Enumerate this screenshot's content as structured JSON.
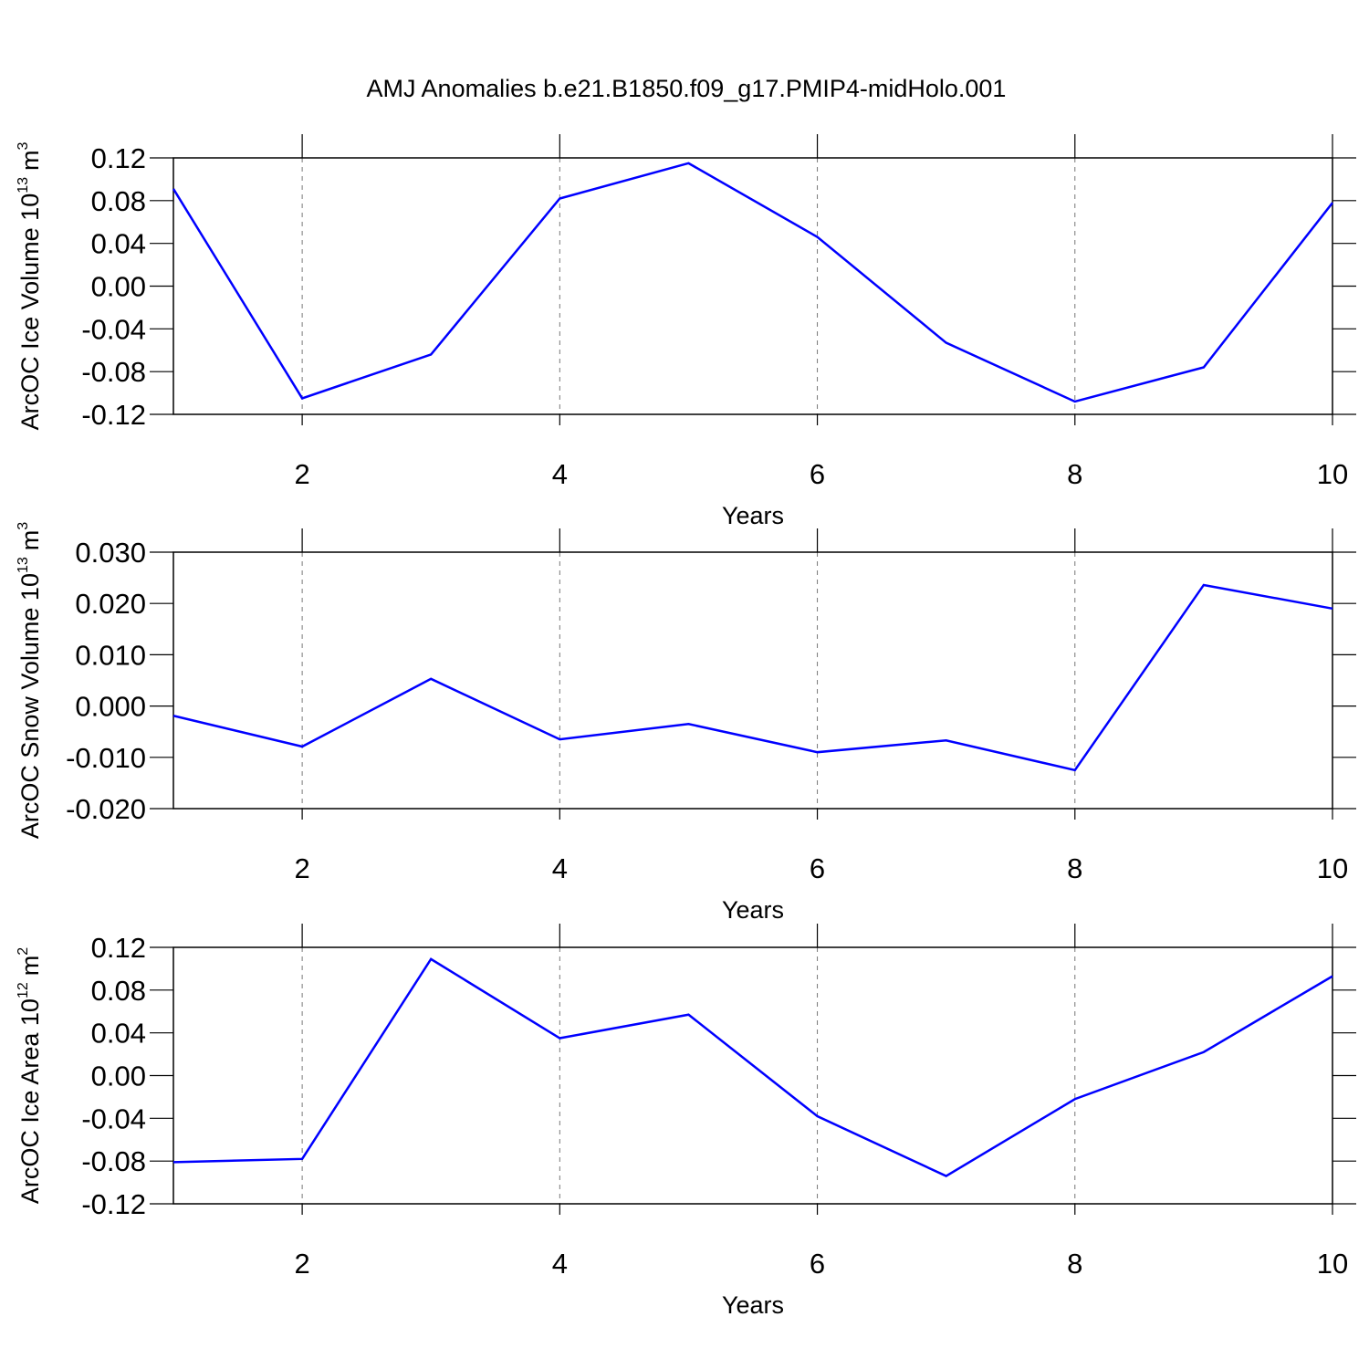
{
  "title": "AMJ Anomalies b.e21.B1850.f09_g17.PMIP4-midHolo.001",
  "chart_data": [
    {
      "type": "line",
      "xlabel": "Years",
      "ylabel": "ArcOC Ice Volume 10",
      "ylabel_exp": "13",
      "ylabel_unit": "m",
      "ylabel_unit_exp": "3",
      "x": [
        1,
        2,
        3,
        4,
        5,
        6,
        7,
        8,
        9,
        10
      ],
      "series": [
        {
          "color": "#0000ff",
          "values": [
            0.091,
            -0.105,
            -0.064,
            0.082,
            0.115,
            0.046,
            -0.053,
            -0.108,
            -0.076,
            0.078
          ]
        }
      ],
      "xlim": [
        1,
        10
      ],
      "xticks": [
        2,
        4,
        6,
        8,
        10
      ],
      "ylim": [
        -0.12,
        0.12
      ],
      "yticks": [
        0.12,
        0.08,
        0.04,
        {
          "value": 0,
          "label": "0.00"
        },
        -0.04,
        -0.08,
        -0.12
      ],
      "grid": "x-dashed"
    },
    {
      "type": "line",
      "xlabel": "Years",
      "ylabel": "ArcOC Snow Volume 10",
      "ylabel_exp": "13",
      "ylabel_unit": "m",
      "ylabel_unit_exp": "3",
      "x": [
        1,
        2,
        3,
        4,
        5,
        6,
        7,
        8,
        9,
        10
      ],
      "series": [
        {
          "color": "#0000ff",
          "values": [
            -0.0019,
            -0.0079,
            0.0053,
            -0.0065,
            -0.0035,
            -0.009,
            -0.0067,
            -0.0125,
            0.0236,
            0.019
          ]
        }
      ],
      "xlim": [
        1,
        10
      ],
      "xticks": [
        2,
        4,
        6,
        8,
        10
      ],
      "ylim": [
        -0.02,
        0.03
      ],
      "yticks": [
        {
          "value": 0.03,
          "label": "0.030"
        },
        {
          "value": 0.02,
          "label": "0.020"
        },
        {
          "value": 0.01,
          "label": "0.010"
        },
        {
          "value": 0,
          "label": "0.000"
        },
        {
          "value": -0.01,
          "label": "-0.010"
        },
        {
          "value": -0.02,
          "label": "-0.020"
        }
      ],
      "grid": "x-dashed"
    },
    {
      "type": "line",
      "xlabel": "Years",
      "ylabel": "ArcOC Ice Area 10",
      "ylabel_exp": "12",
      "ylabel_unit": "m",
      "ylabel_unit_exp": "2",
      "x": [
        1,
        2,
        3,
        4,
        5,
        6,
        7,
        8,
        9,
        10
      ],
      "series": [
        {
          "color": "#0000ff",
          "values": [
            -0.081,
            -0.078,
            0.109,
            0.035,
            0.057,
            -0.038,
            -0.094,
            -0.022,
            0.022,
            0.093
          ]
        }
      ],
      "xlim": [
        1,
        10
      ],
      "xticks": [
        2,
        4,
        6,
        8,
        10
      ],
      "ylim": [
        -0.12,
        0.12
      ],
      "yticks": [
        0.12,
        0.08,
        0.04,
        {
          "value": 0,
          "label": "0.00"
        },
        -0.04,
        -0.08,
        -0.12
      ],
      "grid": "x-dashed"
    }
  ]
}
